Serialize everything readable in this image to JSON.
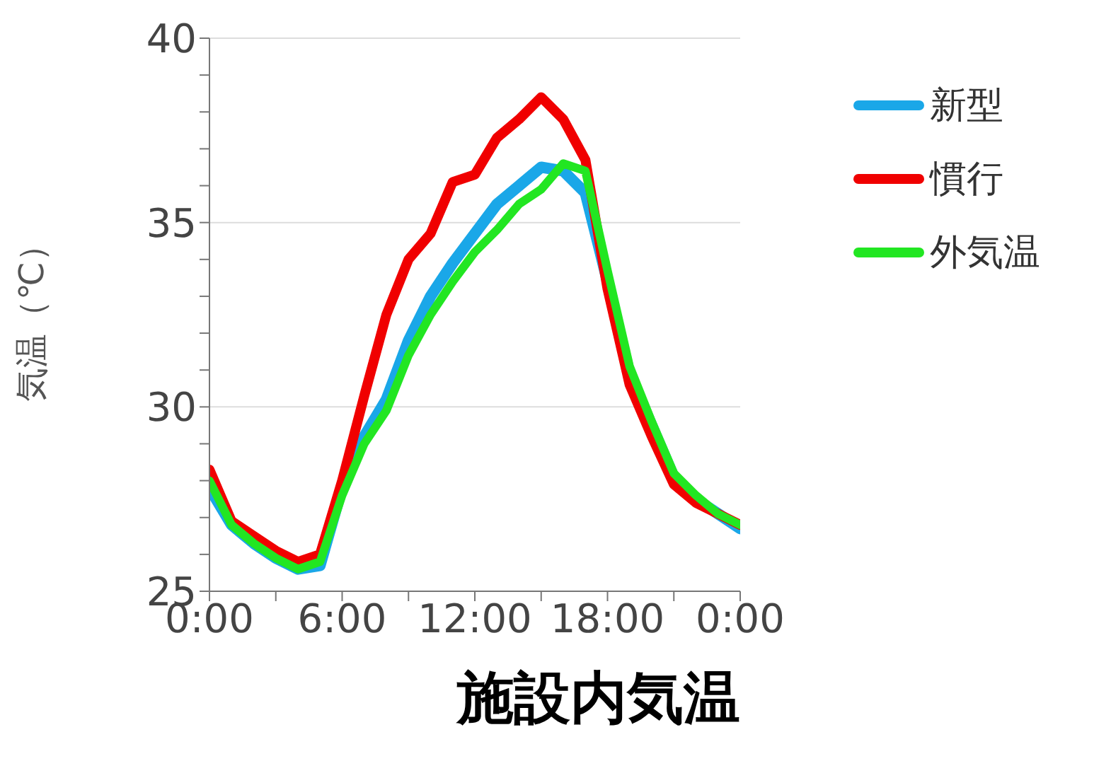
{
  "chart_data": {
    "type": "line",
    "title": "施設内気温",
    "ylabel": "気温（℃）",
    "x": [
      0,
      1,
      2,
      3,
      4,
      5,
      6,
      7,
      8,
      9,
      10,
      11,
      12,
      13,
      14,
      15,
      16,
      17,
      18,
      19,
      20,
      21,
      22,
      23,
      24
    ],
    "series": [
      {
        "name": "新型",
        "color": "#1aa7e8",
        "values": [
          27.8,
          26.8,
          26.3,
          25.9,
          25.6,
          25.7,
          27.8,
          29.2,
          30.2,
          31.8,
          33.0,
          33.9,
          34.7,
          35.5,
          36.0,
          36.5,
          36.4,
          35.8,
          33.4,
          30.9,
          29.5,
          28.1,
          27.5,
          27.1,
          26.7
        ]
      },
      {
        "name": "慣行",
        "color": "#f00000",
        "values": [
          28.3,
          26.9,
          26.5,
          26.1,
          25.8,
          26.0,
          28.0,
          30.3,
          32.5,
          34.0,
          34.7,
          36.1,
          36.3,
          37.3,
          37.8,
          38.4,
          37.8,
          36.7,
          33.2,
          30.6,
          29.2,
          27.9,
          27.4,
          27.1,
          26.8
        ]
      },
      {
        "name": "外気温",
        "color": "#22e622",
        "values": [
          28.0,
          26.8,
          26.3,
          25.9,
          25.6,
          25.8,
          27.6,
          29.0,
          29.9,
          31.4,
          32.5,
          33.4,
          34.2,
          34.8,
          35.5,
          35.9,
          36.6,
          36.4,
          33.7,
          31.1,
          29.6,
          28.2,
          27.6,
          27.1,
          26.8
        ]
      }
    ],
    "xlim": [
      0,
      24
    ],
    "xticks": [
      {
        "value": 0,
        "label": "0:00"
      },
      {
        "value": 3,
        "label": null
      },
      {
        "value": 6,
        "label": "6:00"
      },
      {
        "value": 9,
        "label": null
      },
      {
        "value": 12,
        "label": "12:00"
      },
      {
        "value": 15,
        "label": null
      },
      {
        "value": 18,
        "label": "18:00"
      },
      {
        "value": 21,
        "label": null
      },
      {
        "value": 24,
        "label": "0:00"
      }
    ],
    "ylim": [
      25,
      40
    ],
    "yticks": [
      25,
      {
        "value": 26,
        "label": null
      },
      {
        "value": 27,
        "label": null
      },
      {
        "value": 28,
        "label": null
      },
      {
        "value": 29,
        "label": null
      },
      30,
      {
        "value": 31,
        "label": null
      },
      {
        "value": 32,
        "label": null
      },
      {
        "value": 33,
        "label": null
      },
      {
        "value": 34,
        "label": null
      },
      35,
      {
        "value": 36,
        "label": null
      },
      {
        "value": 37,
        "label": null
      },
      {
        "value": 38,
        "label": null
      },
      {
        "value": 39,
        "label": null
      },
      40
    ],
    "grid": "y",
    "legend": "top right",
    "marker": "none",
    "line_style": "solid"
  }
}
